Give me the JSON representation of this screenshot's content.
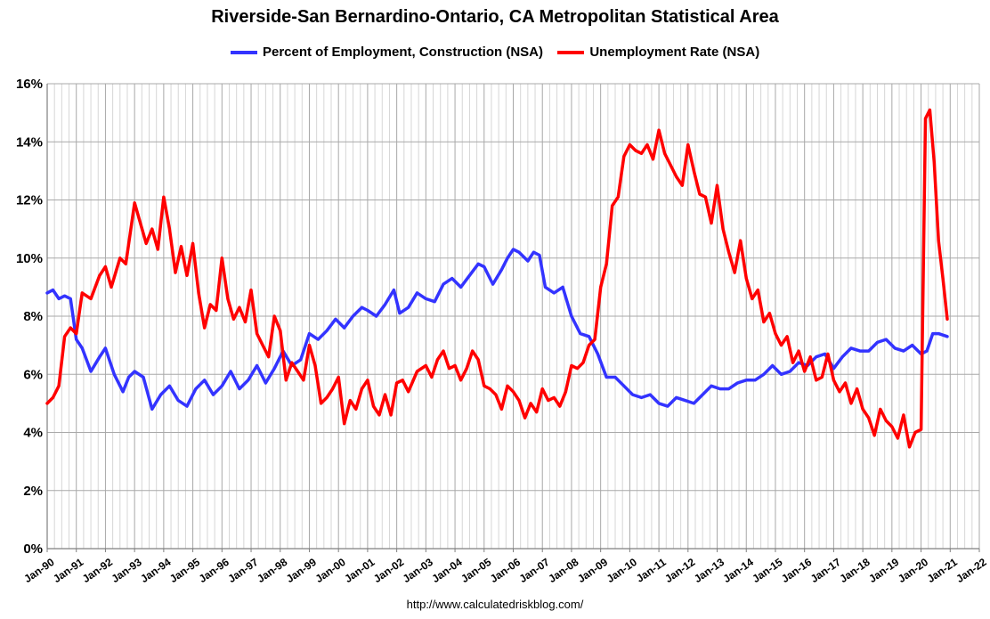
{
  "chart_data": {
    "type": "line",
    "title": "Riverside-San Bernardino-Ontario, CA Metropolitan Statistical Area",
    "xlabel": "",
    "ylabel": "",
    "ylim": [
      0,
      16
    ],
    "yticks": [
      0,
      2,
      4,
      6,
      8,
      10,
      12,
      14,
      16
    ],
    "ytick_labels": [
      "0%",
      "2%",
      "4%",
      "6%",
      "8%",
      "10%",
      "12%",
      "14%",
      "16%"
    ],
    "xlim": [
      1990,
      2022
    ],
    "xtick_labels": [
      "Jan-90",
      "Jan-91",
      "Jan-92",
      "Jan-93",
      "Jan-94",
      "Jan-95",
      "Jan-96",
      "Jan-97",
      "Jan-98",
      "Jan-99",
      "Jan-00",
      "Jan-01",
      "Jan-02",
      "Jan-03",
      "Jan-04",
      "Jan-05",
      "Jan-06",
      "Jan-07",
      "Jan-08",
      "Jan-09",
      "Jan-10",
      "Jan-11",
      "Jan-12",
      "Jan-13",
      "Jan-14",
      "Jan-15",
      "Jan-16",
      "Jan-17",
      "Jan-18",
      "Jan-19",
      "Jan-20",
      "Jan-21",
      "Jan-22"
    ],
    "legend_position": "top-center",
    "grid": true,
    "series": [
      {
        "name": "Percent of Employment, Construction (NSA)",
        "color": "#3333ff",
        "x": [
          1990.0,
          1990.2,
          1990.4,
          1990.6,
          1990.8,
          1991.0,
          1991.2,
          1991.5,
          1991.8,
          1992.0,
          1992.3,
          1992.6,
          1992.8,
          1993.0,
          1993.3,
          1993.6,
          1993.9,
          1994.2,
          1994.5,
          1994.8,
          1995.1,
          1995.4,
          1995.7,
          1996.0,
          1996.3,
          1996.6,
          1996.9,
          1997.2,
          1997.5,
          1997.8,
          1998.1,
          1998.4,
          1998.7,
          1999.0,
          1999.3,
          1999.6,
          1999.9,
          2000.2,
          2000.5,
          2000.8,
          2001.0,
          2001.3,
          2001.6,
          2001.9,
          2002.1,
          2002.4,
          2002.7,
          2003.0,
          2003.3,
          2003.6,
          2003.9,
          2004.2,
          2004.5,
          2004.8,
          2005.0,
          2005.3,
          2005.6,
          2005.8,
          2006.0,
          2006.2,
          2006.5,
          2006.7,
          2006.9,
          2007.1,
          2007.4,
          2007.7,
          2008.0,
          2008.3,
          2008.6,
          2008.9,
          2009.2,
          2009.5,
          2009.8,
          2010.1,
          2010.4,
          2010.7,
          2011.0,
          2011.3,
          2011.6,
          2011.9,
          2012.2,
          2012.5,
          2012.8,
          2013.1,
          2013.4,
          2013.7,
          2014.0,
          2014.3,
          2014.6,
          2014.9,
          2015.2,
          2015.5,
          2015.8,
          2016.1,
          2016.4,
          2016.7,
          2017.0,
          2017.3,
          2017.6,
          2017.9,
          2018.2,
          2018.5,
          2018.8,
          2019.1,
          2019.4,
          2019.7,
          2020.0,
          2020.2,
          2020.4,
          2020.6,
          2020.9
        ],
        "values": [
          8.8,
          8.9,
          8.6,
          8.7,
          8.6,
          7.2,
          6.9,
          6.1,
          6.6,
          6.9,
          6.0,
          5.4,
          5.9,
          6.1,
          5.9,
          4.8,
          5.3,
          5.6,
          5.1,
          4.9,
          5.5,
          5.8,
          5.3,
          5.6,
          6.1,
          5.5,
          5.8,
          6.3,
          5.7,
          6.2,
          6.8,
          6.3,
          6.5,
          7.4,
          7.2,
          7.5,
          7.9,
          7.6,
          8.0,
          8.3,
          8.2,
          8.0,
          8.4,
          8.9,
          8.1,
          8.3,
          8.8,
          8.6,
          8.5,
          9.1,
          9.3,
          9.0,
          9.4,
          9.8,
          9.7,
          9.1,
          9.6,
          10.0,
          10.3,
          10.2,
          9.9,
          10.2,
          10.1,
          9.0,
          8.8,
          9.0,
          8.0,
          7.4,
          7.3,
          6.7,
          5.9,
          5.9,
          5.6,
          5.3,
          5.2,
          5.3,
          5.0,
          4.9,
          5.2,
          5.1,
          5.0,
          5.3,
          5.6,
          5.5,
          5.5,
          5.7,
          5.8,
          5.8,
          6.0,
          6.3,
          6.0,
          6.1,
          6.4,
          6.3,
          6.6,
          6.7,
          6.2,
          6.6,
          6.9,
          6.8,
          6.8,
          7.1,
          7.2,
          6.9,
          6.8,
          7.0,
          6.7,
          6.8,
          7.4,
          7.4,
          7.3
        ]
      },
      {
        "name": "Unemployment Rate (NSA)",
        "color": "#ff0000",
        "x": [
          1990.0,
          1990.2,
          1990.4,
          1990.6,
          1990.8,
          1991.0,
          1991.2,
          1991.5,
          1991.8,
          1992.0,
          1992.2,
          1992.5,
          1992.7,
          1993.0,
          1993.2,
          1993.4,
          1993.6,
          1993.8,
          1994.0,
          1994.2,
          1994.4,
          1994.6,
          1994.8,
          1995.0,
          1995.2,
          1995.4,
          1995.6,
          1995.8,
          1996.0,
          1996.2,
          1996.4,
          1996.6,
          1996.8,
          1997.0,
          1997.2,
          1997.4,
          1997.6,
          1997.8,
          1998.0,
          1998.2,
          1998.4,
          1998.6,
          1998.8,
          1999.0,
          1999.2,
          1999.4,
          1999.6,
          1999.8,
          2000.0,
          2000.2,
          2000.4,
          2000.6,
          2000.8,
          2001.0,
          2001.2,
          2001.4,
          2001.6,
          2001.8,
          2002.0,
          2002.2,
          2002.4,
          2002.7,
          2003.0,
          2003.2,
          2003.4,
          2003.6,
          2003.8,
          2004.0,
          2004.2,
          2004.4,
          2004.6,
          2004.8,
          2005.0,
          2005.2,
          2005.4,
          2005.6,
          2005.8,
          2006.0,
          2006.2,
          2006.4,
          2006.6,
          2006.8,
          2007.0,
          2007.2,
          2007.4,
          2007.6,
          2007.8,
          2008.0,
          2008.2,
          2008.4,
          2008.6,
          2008.8,
          2009.0,
          2009.2,
          2009.4,
          2009.6,
          2009.8,
          2010.0,
          2010.2,
          2010.4,
          2010.6,
          2010.8,
          2011.0,
          2011.2,
          2011.4,
          2011.6,
          2011.8,
          2012.0,
          2012.2,
          2012.4,
          2012.6,
          2012.8,
          2013.0,
          2013.2,
          2013.4,
          2013.6,
          2013.8,
          2014.0,
          2014.2,
          2014.4,
          2014.6,
          2014.8,
          2015.0,
          2015.2,
          2015.4,
          2015.6,
          2015.8,
          2016.0,
          2016.2,
          2016.4,
          2016.6,
          2016.8,
          2017.0,
          2017.2,
          2017.4,
          2017.6,
          2017.8,
          2018.0,
          2018.2,
          2018.4,
          2018.6,
          2018.8,
          2019.0,
          2019.2,
          2019.4,
          2019.6,
          2019.8,
          2020.0,
          2020.15,
          2020.3,
          2020.45,
          2020.6,
          2020.75,
          2020.9
        ],
        "values": [
          5.0,
          5.2,
          5.6,
          7.3,
          7.6,
          7.4,
          8.8,
          8.6,
          9.4,
          9.7,
          9.0,
          10.0,
          9.8,
          11.9,
          11.2,
          10.5,
          11.0,
          10.3,
          12.1,
          11.0,
          9.5,
          10.4,
          9.4,
          10.5,
          8.8,
          7.6,
          8.4,
          8.2,
          10.0,
          8.6,
          7.9,
          8.3,
          7.8,
          8.9,
          7.4,
          7.0,
          6.6,
          8.0,
          7.5,
          5.8,
          6.4,
          6.1,
          5.8,
          7.0,
          6.3,
          5.0,
          5.2,
          5.5,
          5.9,
          4.3,
          5.1,
          4.8,
          5.5,
          5.8,
          4.9,
          4.6,
          5.3,
          4.6,
          5.7,
          5.8,
          5.4,
          6.1,
          6.3,
          5.9,
          6.5,
          6.8,
          6.2,
          6.3,
          5.8,
          6.2,
          6.8,
          6.5,
          5.6,
          5.5,
          5.3,
          4.8,
          5.6,
          5.4,
          5.1,
          4.5,
          5.0,
          4.7,
          5.5,
          5.1,
          5.2,
          4.9,
          5.4,
          6.3,
          6.2,
          6.4,
          7.0,
          7.2,
          9.0,
          9.8,
          11.8,
          12.1,
          13.5,
          13.9,
          13.7,
          13.6,
          13.9,
          13.4,
          14.4,
          13.6,
          13.2,
          12.8,
          12.5,
          13.9,
          13.0,
          12.2,
          12.1,
          11.2,
          12.5,
          11.0,
          10.2,
          9.5,
          10.6,
          9.3,
          8.6,
          8.9,
          7.8,
          8.1,
          7.4,
          7.0,
          7.3,
          6.4,
          6.8,
          6.1,
          6.6,
          5.8,
          5.9,
          6.7,
          5.8,
          5.4,
          5.7,
          5.0,
          5.5,
          4.8,
          4.5,
          3.9,
          4.8,
          4.4,
          4.2,
          3.8,
          4.6,
          3.5,
          4.0,
          4.1,
          14.8,
          15.1,
          13.3,
          10.6,
          9.3,
          7.9
        ]
      }
    ]
  },
  "source_note": "http://www.calculatedriskblog.com/"
}
